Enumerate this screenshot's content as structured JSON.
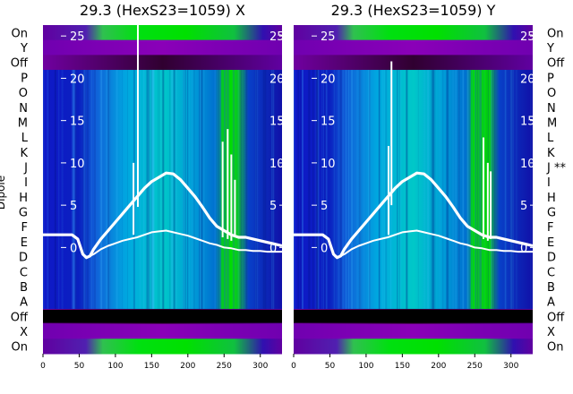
{
  "chart_data": {
    "type": "heatmap",
    "left_row_labels": [
      "On",
      "Y",
      "Off",
      "P",
      "O",
      "N",
      "M",
      "L",
      "K",
      "J",
      "I",
      "H",
      "G",
      "F",
      "E",
      "D",
      "C",
      "B",
      "A",
      "Off",
      "X",
      "On"
    ],
    "right_row_labels": [
      "On",
      "Y",
      "Off",
      "P",
      "O",
      "N",
      "M",
      "L",
      "K",
      "J **",
      "I",
      "H",
      "G",
      "F",
      "E",
      "D",
      "C",
      "B",
      "A",
      "Off",
      "X",
      "On"
    ],
    "ylabel": "Dipole",
    "xlim": [
      0,
      330
    ],
    "x_ticks": [
      0,
      50,
      100,
      150,
      200,
      250,
      300
    ],
    "overlay_ylim": [
      -2.5,
      26.5
    ],
    "overlay_ticks": [
      0,
      5,
      10,
      15,
      20,
      25
    ],
    "colors": {
      "cold": "#0a10c8",
      "mid": "#0080d8",
      "hot": "#00e000",
      "off": "#9000b0",
      "dead": "#000000",
      "overlay": "#ffffff"
    },
    "panels": [
      {
        "title": "29.3 (HexS23=1059) X",
        "series": [
          {
            "x": [
              0,
              10,
              20,
              30,
              40,
              48,
              55,
              60,
              65,
              70,
              80,
              90,
              100,
              110,
              120,
              130,
              140,
              150,
              160,
              170,
              180,
              190,
              200,
              210,
              220,
              230,
              240,
              250,
              260,
              270,
              280,
              290,
              300,
              310,
              320,
              330
            ],
            "y": [
              1.5,
              1.5,
              1.5,
              1.5,
              1.5,
              1.0,
              -0.8,
              -1.2,
              -1.0,
              -0.2,
              1.0,
              2.0,
              3.0,
              4.0,
              5.0,
              6.0,
              7.0,
              7.8,
              8.3,
              8.8,
              8.7,
              8.0,
              7.0,
              6.0,
              4.8,
              3.5,
              2.5,
              2.0,
              1.5,
              1.2,
              1.2,
              1.0,
              0.8,
              0.6,
              0.4,
              0.2
            ]
          },
          {
            "x": [
              0,
              10,
              20,
              30,
              40,
              48,
              55,
              60,
              65,
              70,
              80,
              90,
              100,
              110,
              120,
              130,
              140,
              150,
              160,
              170,
              180,
              190,
              200,
              210,
              220,
              230,
              240,
              250,
              260,
              270,
              280,
              290,
              300,
              310,
              320,
              330
            ],
            "y": [
              1.5,
              1.5,
              1.5,
              1.5,
              1.5,
              1.0,
              -0.8,
              -1.2,
              -1.0,
              -0.8,
              -0.2,
              0.2,
              0.5,
              0.8,
              1.0,
              1.2,
              1.5,
              1.8,
              1.9,
              2.0,
              1.8,
              1.6,
              1.4,
              1.1,
              0.8,
              0.5,
              0.3,
              0.0,
              -0.1,
              -0.3,
              -0.3,
              -0.4,
              -0.4,
              -0.5,
              -0.5,
              -0.5
            ]
          }
        ],
        "spikes": [
          {
            "x": 131,
            "y0": 4.8,
            "y1": 26.5
          },
          {
            "x": 125,
            "y0": 1.5,
            "y1": 10.0
          },
          {
            "x": 248,
            "y0": 1.2,
            "y1": 12.5
          },
          {
            "x": 255,
            "y0": 1.0,
            "y1": 14.0
          },
          {
            "x": 260,
            "y0": 0.8,
            "y1": 11.0
          },
          {
            "x": 265,
            "y0": 1.5,
            "y1": 8.0
          }
        ]
      },
      {
        "title": "29.3 (HexS23=1059) Y",
        "series": [
          {
            "x": [
              0,
              10,
              20,
              30,
              40,
              48,
              55,
              60,
              65,
              70,
              80,
              90,
              100,
              110,
              120,
              130,
              140,
              150,
              160,
              170,
              180,
              190,
              200,
              210,
              220,
              230,
              240,
              250,
              260,
              270,
              280,
              290,
              300,
              310,
              320,
              330
            ],
            "y": [
              1.5,
              1.5,
              1.5,
              1.5,
              1.5,
              1.0,
              -0.8,
              -1.2,
              -1.0,
              -0.2,
              1.0,
              2.0,
              3.0,
              4.0,
              5.0,
              6.0,
              7.0,
              7.8,
              8.3,
              8.8,
              8.7,
              8.0,
              7.0,
              6.0,
              4.8,
              3.5,
              2.5,
              2.0,
              1.5,
              1.2,
              1.2,
              1.0,
              0.8,
              0.6,
              0.4,
              0.2
            ]
          },
          {
            "x": [
              0,
              10,
              20,
              30,
              40,
              48,
              55,
              60,
              65,
              70,
              80,
              90,
              100,
              110,
              120,
              130,
              140,
              150,
              160,
              170,
              180,
              190,
              200,
              210,
              220,
              230,
              240,
              250,
              260,
              270,
              280,
              290,
              300,
              310,
              320,
              330
            ],
            "y": [
              1.5,
              1.5,
              1.5,
              1.5,
              1.5,
              1.0,
              -0.8,
              -1.2,
              -1.0,
              -0.8,
              -0.2,
              0.2,
              0.5,
              0.8,
              1.0,
              1.2,
              1.5,
              1.8,
              1.9,
              2.0,
              1.8,
              1.6,
              1.4,
              1.1,
              0.8,
              0.5,
              0.3,
              0.0,
              -0.1,
              -0.3,
              -0.3,
              -0.4,
              -0.4,
              -0.5,
              -0.5,
              -0.5
            ]
          }
        ],
        "spikes": [
          {
            "x": 135,
            "y0": 5.0,
            "y1": 22.0
          },
          {
            "x": 131,
            "y0": 1.5,
            "y1": 12.0
          },
          {
            "x": 262,
            "y0": 1.0,
            "y1": 13.0
          },
          {
            "x": 268,
            "y0": 0.8,
            "y1": 10.0
          },
          {
            "x": 272,
            "y0": 1.0,
            "y1": 9.0
          }
        ]
      }
    ]
  }
}
